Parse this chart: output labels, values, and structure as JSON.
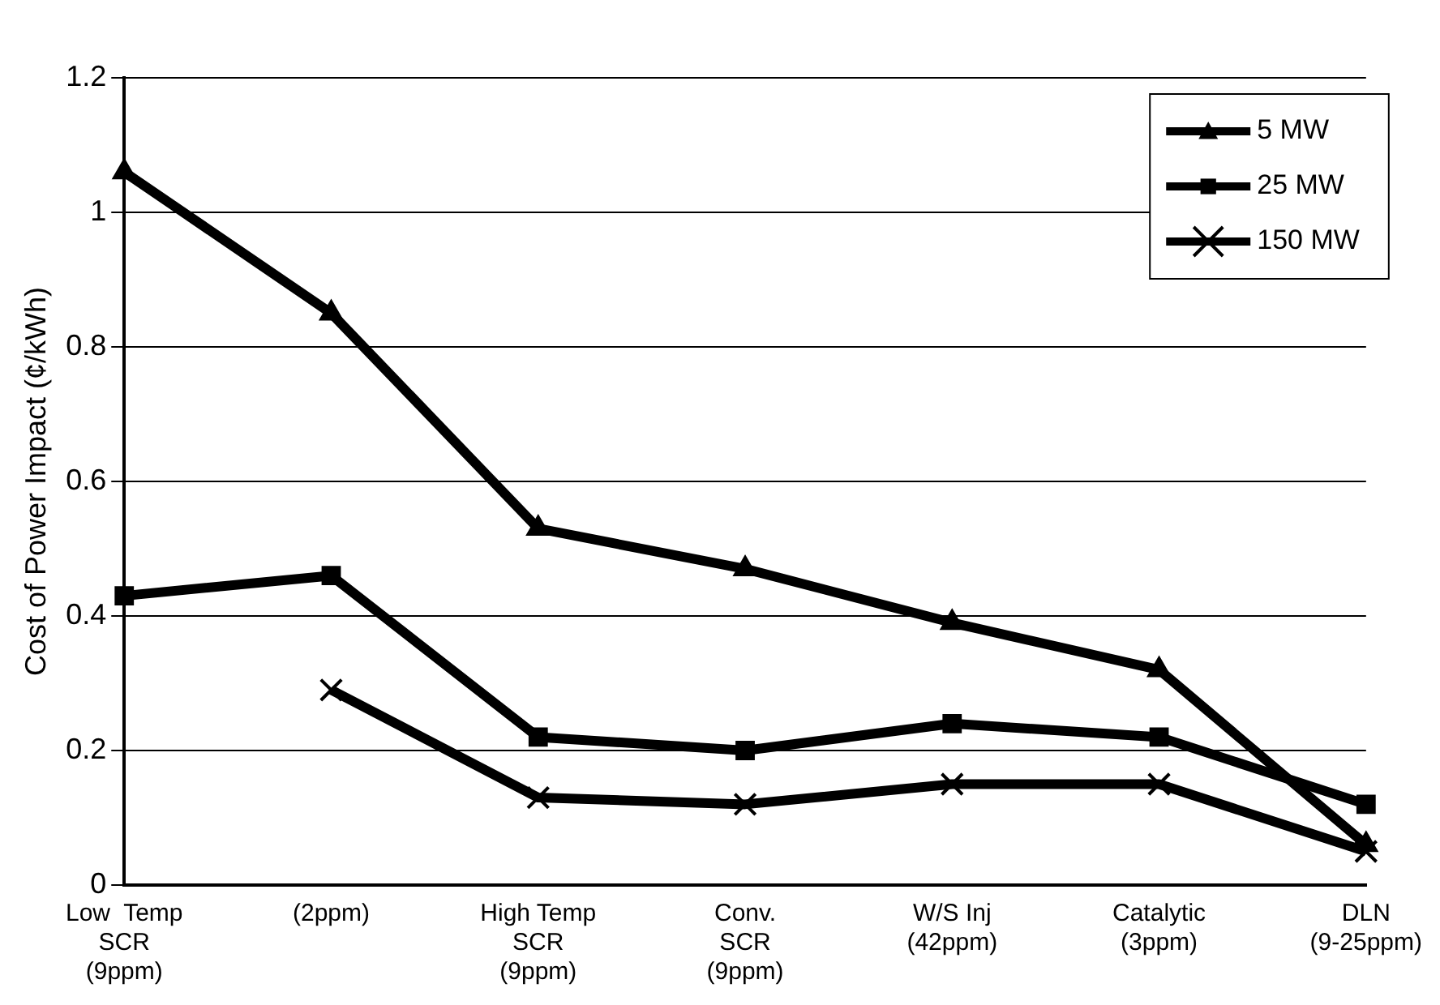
{
  "chart_data": {
    "type": "line",
    "ylabel": "Cost of Power Impact (¢/kWh)",
    "categories": [
      "Low  Temp\nSCR\n(9ppm)",
      "(2ppm)",
      "High Temp\nSCR\n(9ppm)",
      "Conv.\nSCR\n(9ppm)",
      "W/S Inj\n(42ppm)",
      "Catalytic\n(3ppm)",
      "DLN\n(9-25ppm)"
    ],
    "series": [
      {
        "name": "5 MW",
        "color": "#000000",
        "marker": "triangle",
        "values": [
          1.06,
          0.85,
          0.53,
          0.47,
          0.39,
          0.32,
          0.06
        ]
      },
      {
        "name": "25 MW",
        "color": "#000000",
        "marker": "square",
        "values": [
          0.43,
          0.46,
          0.22,
          0.2,
          0.24,
          0.22,
          0.12
        ]
      },
      {
        "name": "150 MW",
        "color": "#000000",
        "marker": "cross",
        "values": [
          null,
          0.29,
          0.13,
          0.12,
          0.15,
          0.15,
          0.05
        ]
      }
    ],
    "ylim": [
      0,
      1.2
    ],
    "yticks": [
      0,
      0.2,
      0.4,
      0.6,
      0.8,
      1,
      1.2
    ],
    "grid": "y",
    "legend": "top right"
  }
}
